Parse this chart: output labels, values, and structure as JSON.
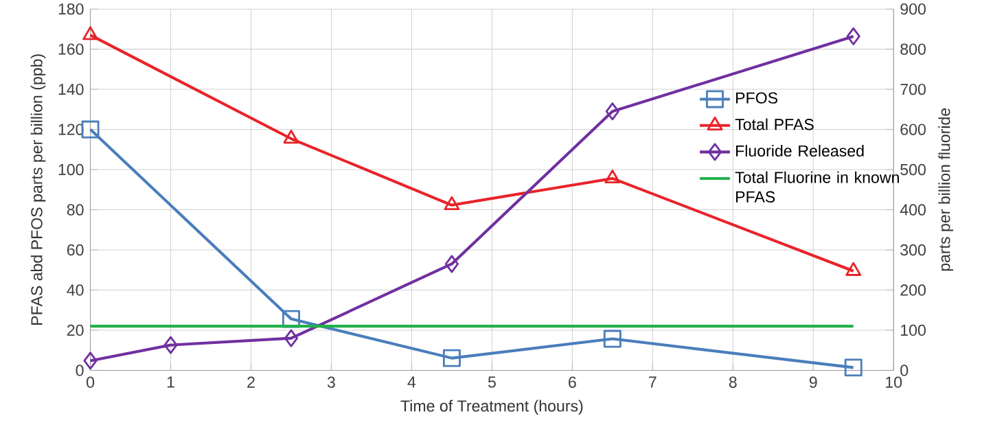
{
  "chart_data": {
    "type": "line",
    "xlabel": "Time of Treatment (hours)",
    "ylabel": "PFAS abd PFOS parts per billion  (ppb)",
    "y2label": "parts per billion fluoride",
    "xlim": [
      0,
      10
    ],
    "xticks": [
      0,
      1,
      2,
      3,
      4,
      5,
      6,
      7,
      8,
      9,
      10
    ],
    "ylim": [
      0,
      180
    ],
    "yticks": [
      0,
      20,
      40,
      60,
      80,
      100,
      120,
      140,
      160,
      180
    ],
    "y2lim": [
      0,
      900
    ],
    "y2ticks": [
      0,
      100,
      200,
      300,
      400,
      500,
      600,
      700,
      800,
      900
    ],
    "grid": true,
    "legend": "right",
    "series": [
      {
        "name": "PFOS",
        "color": "#4a7ebb",
        "marker": "square",
        "x": [
          0,
          2.5,
          4.5,
          6.5,
          9.5
        ],
        "values": [
          120,
          25.6,
          6.1,
          15.7,
          1.4
        ]
      },
      {
        "name": "Total PFAS",
        "color": "#e8242a",
        "marker": "triangle",
        "x": [
          0,
          2.5,
          4.5,
          6.5,
          9.5
        ],
        "values": [
          167,
          115.4,
          82.3,
          95.6,
          49.5
        ]
      },
      {
        "name": "Fluoride Released",
        "color": "#7030a0",
        "marker": "diamond",
        "axis": "y2",
        "x": [
          0,
          1,
          2.5,
          4.5,
          6.5,
          9.5
        ],
        "values": [
          24,
          63,
          80,
          265,
          645,
          832
        ]
      },
      {
        "name": "Total Fluorine in known PFAS",
        "color": "#22b14c",
        "marker": "none",
        "axis": "y2",
        "x": [
          0,
          9.5
        ],
        "values": [
          110,
          110
        ]
      }
    ]
  }
}
